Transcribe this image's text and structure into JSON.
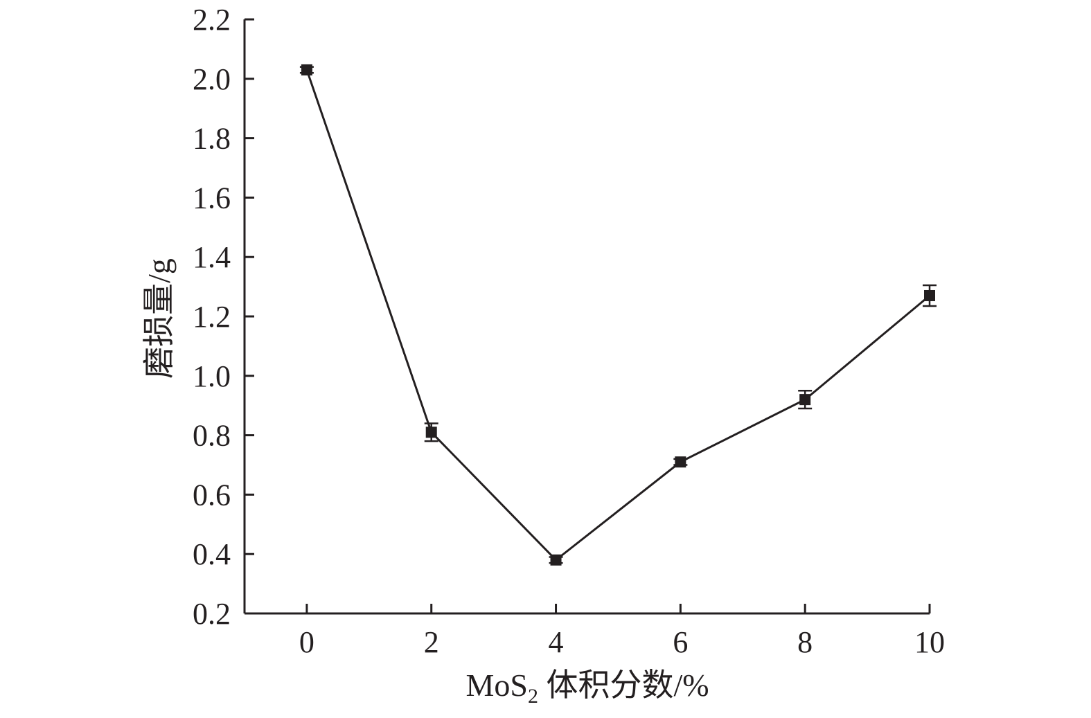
{
  "chart_data": {
    "type": "line",
    "x": [
      0,
      2,
      4,
      6,
      8,
      10
    ],
    "xticks": [
      "0",
      "2",
      "4",
      "6",
      "8",
      "10"
    ],
    "xlim": [
      -1,
      10
    ],
    "series": [
      {
        "values": [
          2.03,
          0.81,
          0.38,
          0.71,
          0.92,
          1.27
        ],
        "errors": [
          0.01,
          0.03,
          0.01,
          0.01,
          0.03,
          0.035
        ]
      }
    ],
    "yticks": [
      "0.2",
      "0.4",
      "0.6",
      "0.8",
      "1.0",
      "1.2",
      "1.4",
      "1.6",
      "1.8",
      "2.0",
      "2.2"
    ],
    "ylim": [
      0.2,
      2.2
    ],
    "ylabel": "磨损量/g",
    "xlabel": {
      "prefix": "MoS",
      "subscript": "2",
      "suffix": " 体积分数/%"
    },
    "grid": false,
    "marker": "square",
    "colors": {
      "line": "#231f20",
      "marker": "#231f20",
      "axis": "#231f20"
    }
  }
}
